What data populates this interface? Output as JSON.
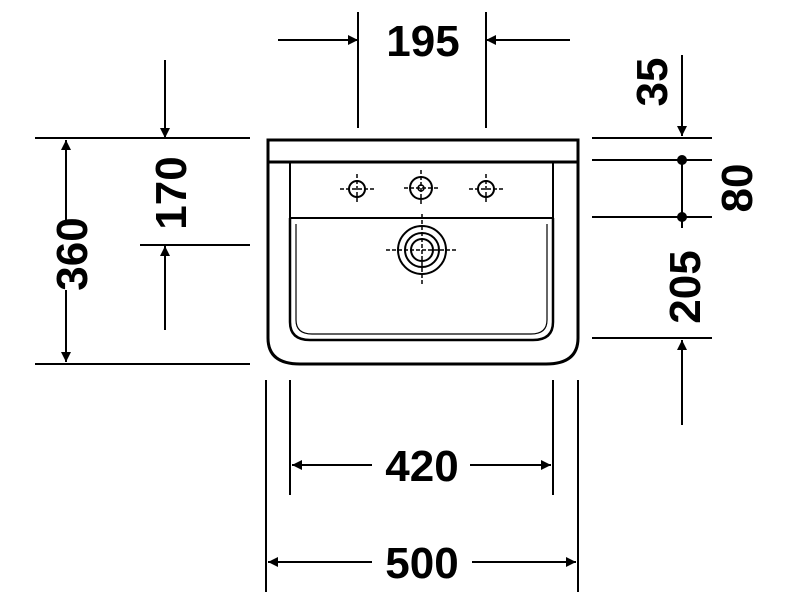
{
  "dimensions": {
    "hole_spacing": "195",
    "top_offset": "170",
    "overall_depth": "360",
    "rim_height": "35",
    "overflow_height": "80",
    "bowl_depth": "205",
    "inner_width": "420",
    "overall_width": "500"
  },
  "colors": {
    "ink": "#000000",
    "background": "#ffffff"
  }
}
